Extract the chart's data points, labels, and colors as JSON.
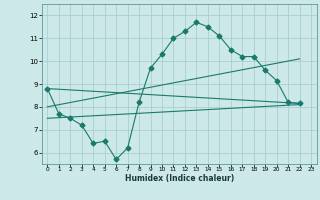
{
  "xlabel": "Humidex (Indice chaleur)",
  "background_color": "#cce8e8",
  "grid_color": "#aacfcf",
  "line_color": "#1a7a6a",
  "xlim": [
    -0.5,
    23.5
  ],
  "ylim": [
    5.5,
    12.5
  ],
  "yticks": [
    6,
    7,
    8,
    9,
    10,
    11,
    12
  ],
  "xticks": [
    0,
    1,
    2,
    3,
    4,
    5,
    6,
    7,
    8,
    9,
    10,
    11,
    12,
    13,
    14,
    15,
    16,
    17,
    18,
    19,
    20,
    21,
    22,
    23
  ],
  "line1_x": [
    0,
    1,
    2,
    3,
    4,
    5,
    6,
    7,
    8,
    9,
    10,
    11,
    12,
    13,
    14,
    15,
    16,
    17,
    18,
    19,
    20,
    21,
    22
  ],
  "line1_y": [
    8.8,
    7.7,
    7.5,
    7.2,
    6.4,
    6.5,
    5.7,
    6.2,
    8.2,
    9.7,
    10.3,
    11.0,
    11.3,
    11.7,
    11.5,
    11.1,
    10.5,
    10.2,
    10.2,
    9.6,
    9.15,
    8.2,
    8.15
  ],
  "line2_x": [
    0,
    22
  ],
  "line2_y": [
    8.8,
    8.15
  ],
  "line3_x": [
    0,
    22
  ],
  "line3_y": [
    8.0,
    10.1
  ],
  "line4_x": [
    0,
    22
  ],
  "line4_y": [
    7.5,
    8.1
  ],
  "marker": "D",
  "markersize": 2.5
}
